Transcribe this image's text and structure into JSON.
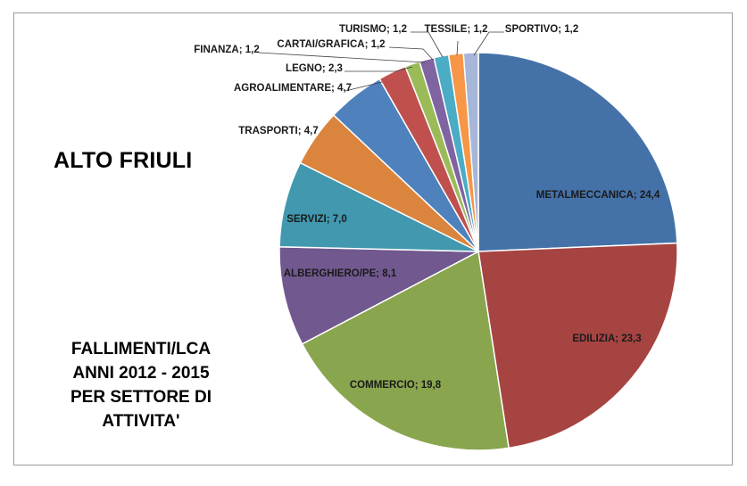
{
  "chart_data": {
    "type": "pie",
    "title": "ALTO FRIULI",
    "subtitle_lines": [
      "FALLIMENTI/LCA",
      "ANNI 2012 - 2015",
      "PER SETTORE DI",
      "ATTIVITA'"
    ],
    "slices": [
      {
        "name": "METALMECCANICA",
        "value": 24.4,
        "label": "METALMECCANICA; 24,4",
        "color": "#4472A8"
      },
      {
        "name": "EDILIZIA",
        "value": 23.3,
        "label": "EDILIZIA; 23,3",
        "color": "#A64442"
      },
      {
        "name": "COMMERCIO",
        "value": 19.8,
        "label": "COMMERCIO; 19,8",
        "color": "#89A54E"
      },
      {
        "name": "ALBERGHIERO/PE",
        "value": 8.1,
        "label": "ALBERGHIERO/PE; 8,1",
        "color": "#71588F"
      },
      {
        "name": "SERVIZI",
        "value": 7.0,
        "label": "SERVIZI; 7,0",
        "color": "#4198AF"
      },
      {
        "name": "TRASPORTI",
        "value": 4.7,
        "label": "TRASPORTI; 4,7",
        "color": "#DB843D"
      },
      {
        "name": "AGROALIMENTARE",
        "value": 4.7,
        "label": "AGROALIMENTARE; 4,7",
        "color": "#4F81BD"
      },
      {
        "name": "LEGNO",
        "value": 2.3,
        "label": "LEGNO; 2,3",
        "color": "#C0504D"
      },
      {
        "name": "FINANZA",
        "value": 1.2,
        "label": "FINANZA; 1,2",
        "color": "#9BBB59"
      },
      {
        "name": "CARTAI/GRAFICA",
        "value": 1.2,
        "label": "CARTAI/GRAFICA; 1,2",
        "color": "#8064A2"
      },
      {
        "name": "TURISMO",
        "value": 1.2,
        "label": "TURISMO; 1,2",
        "color": "#4BACC6"
      },
      {
        "name": "TESSILE",
        "value": 1.2,
        "label": "TESSILE; 1,2",
        "color": "#F79646"
      },
      {
        "name": "SPORTIVO",
        "value": 1.2,
        "label": "SPORTIVO; 1,2",
        "color": "#A5B6D8"
      }
    ],
    "legend": "none",
    "data_labels": "category; value"
  }
}
